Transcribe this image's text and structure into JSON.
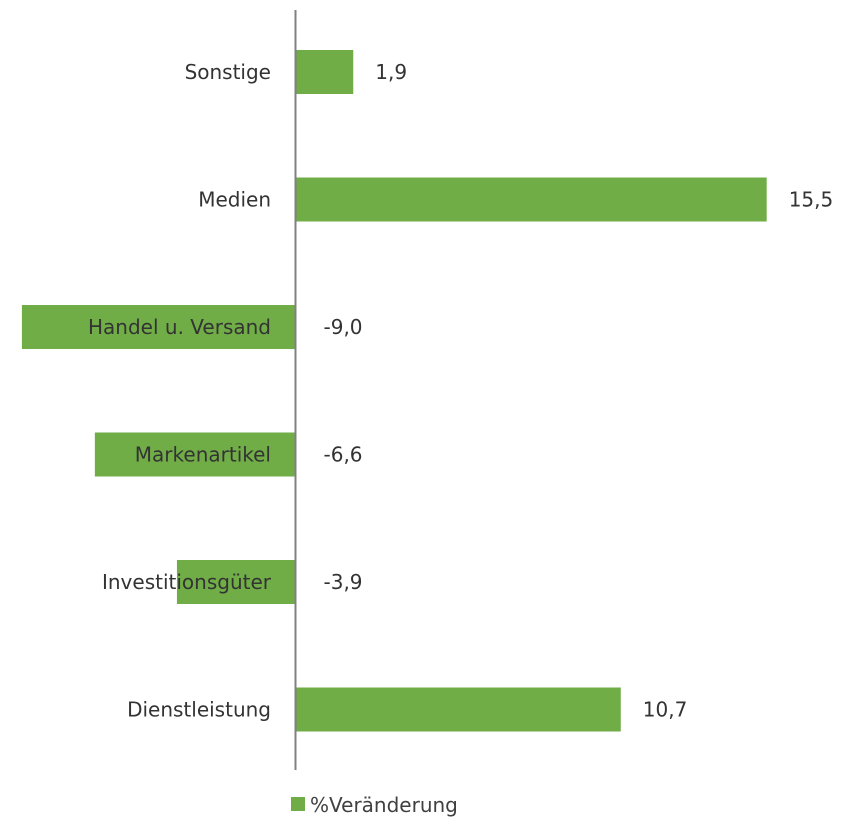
{
  "chart_data": {
    "type": "bar",
    "orientation": "horizontal",
    "categories": [
      "Sonstige",
      "Medien",
      "Handel u. Versand",
      "Markenartikel",
      "Investitionsgüter",
      "Dienstleistung"
    ],
    "series": [
      {
        "name": "%Veränderung",
        "values": [
          1.9,
          15.5,
          -9.0,
          -6.6,
          -3.9,
          10.7
        ],
        "value_labels": [
          "1,9",
          "15,5",
          "-9,0",
          "-6,6",
          "-3,9",
          "10,7"
        ],
        "color": "#70ad47"
      }
    ],
    "xlim": [
      -9.0,
      15.5
    ],
    "grid": false,
    "legend_position": "bottom"
  },
  "colors": {
    "bar": "#70ad47",
    "axis": "#808080",
    "text": "#333333"
  }
}
